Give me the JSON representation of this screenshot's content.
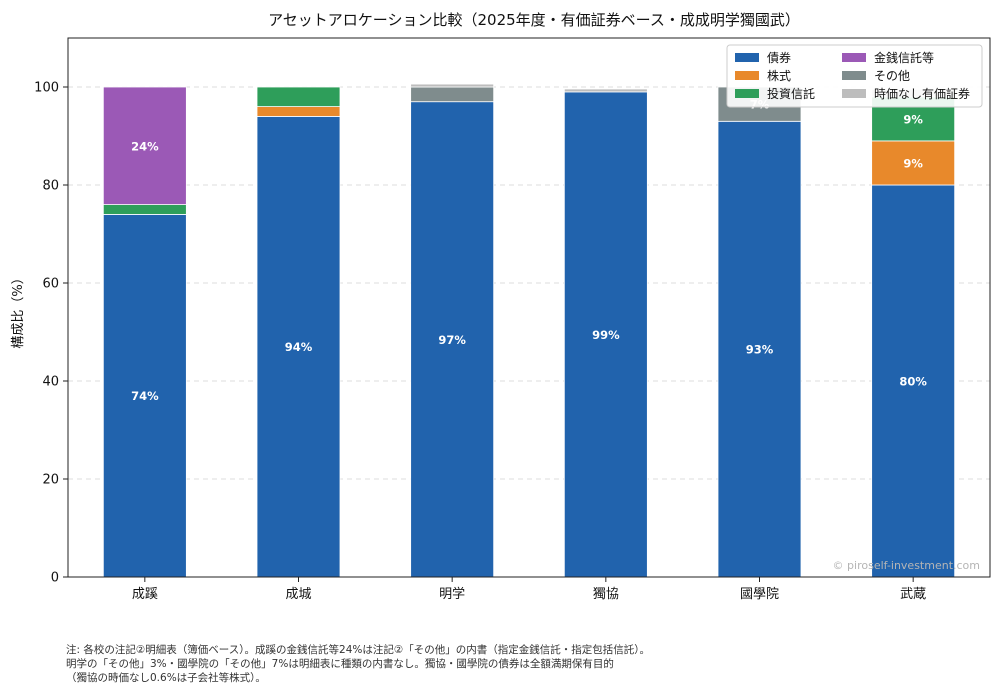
{
  "chart_data": {
    "type": "bar",
    "stacked": true,
    "title": "アセットアロケーション比較（2025年度・有価証券ベース・成成明学獨國武）",
    "xlabel": "",
    "ylabel": "構成比（%）",
    "ylim": [
      0,
      110
    ],
    "yticks": [
      0,
      20,
      40,
      60,
      80,
      100
    ],
    "grid": true,
    "legend_position": "top-right",
    "categories": [
      "成蹊",
      "成城",
      "明学",
      "獨協",
      "國學院",
      "武蔵"
    ],
    "series": [
      {
        "name": "債券",
        "color": "#2163ad",
        "values": [
          74,
          94,
          97,
          99,
          93,
          80
        ],
        "labels": [
          "74%",
          "94%",
          "97%",
          "99%",
          "93%",
          "80%"
        ]
      },
      {
        "name": "株式",
        "color": "#e8892b",
        "values": [
          0,
          2,
          0,
          0,
          0,
          9
        ],
        "labels": [
          "",
          "",
          "",
          "",
          "",
          "9%"
        ]
      },
      {
        "name": "投資信託",
        "color": "#2e9e5a",
        "values": [
          2,
          4,
          0,
          0,
          0,
          9
        ],
        "labels": [
          "",
          "",
          "",
          "",
          "",
          "9%"
        ]
      },
      {
        "name": "金銭信託等",
        "color": "#9b59b6",
        "values": [
          24,
          0,
          0,
          0,
          0,
          0
        ],
        "labels": [
          "24%",
          "",
          "",
          "",
          "",
          ""
        ]
      },
      {
        "name": "その他",
        "color": "#7f8c8d",
        "values": [
          0,
          0,
          3,
          0,
          7,
          0
        ],
        "labels": [
          "",
          "",
          "",
          "",
          "7%",
          ""
        ]
      },
      {
        "name": "時価なし有価証券",
        "color": "#bdbdbd",
        "values": [
          0,
          0,
          0.6,
          0.6,
          0,
          1.5
        ],
        "labels": [
          "",
          "",
          "",
          "",
          "",
          ""
        ]
      }
    ]
  },
  "watermark": "© piroself-investment.com",
  "notes": [
    "注: 各校の注記②明細表（簿価ベース）。成蹊の金銭信託等24%は注記②「その他」の内書（指定金銭信託・指定包括信託）。",
    "明学の「その他」3%・國學院の「その他」7%は明細表に種類の内書なし。獨協・國學院の債券は全額満期保有目的",
    "（獨協の時価なし0.6%は子会社等株式）。"
  ]
}
